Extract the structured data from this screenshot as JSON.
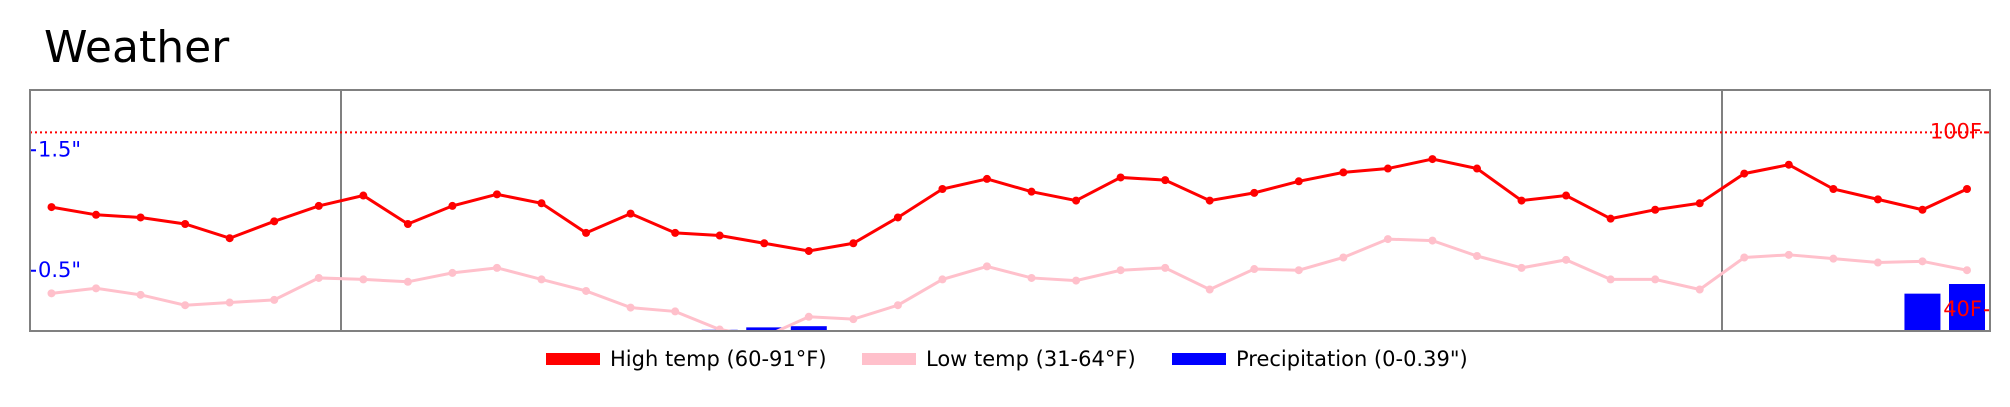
{
  "chart_data": {
    "type": "line",
    "title": "Weather",
    "categories": [
      null,
      null,
      null,
      null,
      null,
      null,
      null,
      null,
      null,
      null,
      null,
      null,
      null,
      null,
      null,
      null,
      null,
      null,
      null,
      null,
      null,
      null,
      null,
      null,
      null,
      null,
      null,
      null,
      null,
      null,
      null,
      null,
      null,
      null,
      null,
      null,
      null,
      null,
      null,
      null,
      null,
      null,
      null,
      null
    ],
    "series": [
      {
        "name": "High temp (60-91°F)",
        "color": "#ff0000",
        "axis": "y2",
        "values": [
          74.8,
          72.2,
          71.3,
          69.1,
          64.3,
          70,
          75.2,
          78.7,
          69.1,
          75.2,
          79.1,
          76.1,
          66.1,
          72.6,
          66.1,
          65.2,
          62.6,
          60,
          62.6,
          71.3,
          80.9,
          84.3,
          80,
          77,
          84.8,
          83.9,
          77,
          79.6,
          83.5,
          86.5,
          87.8,
          91,
          87.8,
          77,
          78.7,
          70.9,
          73.9,
          76.1,
          86.1,
          89.1,
          80.9,
          77.4,
          73.9,
          80.9
        ]
      },
      {
        "name": "Low temp (31-64°F)",
        "color": "#ffc0cb",
        "axis": "y2",
        "values": [
          45.7,
          47.4,
          45.2,
          41.7,
          42.6,
          43.5,
          50.9,
          50.4,
          49.6,
          52.6,
          54.3,
          50.4,
          46.5,
          40.9,
          39.6,
          33.5,
          31,
          37.8,
          37,
          41.7,
          50.4,
          54.8,
          50.9,
          50,
          53.5,
          54.3,
          47,
          53.9,
          53.5,
          57.8,
          64,
          63.5,
          58.3,
          54.3,
          57,
          50.4,
          50.4,
          47,
          57.8,
          58.7,
          57.4,
          56.1,
          56.5,
          53.5
        ]
      },
      {
        "name": "Precipitation (0-0.39\")",
        "color": "#0000ff",
        "type": "bar",
        "values": [
          0,
          0,
          0,
          0,
          0,
          0,
          0,
          0,
          0,
          0,
          0,
          0,
          0,
          0,
          0,
          0.01,
          0.03,
          0.04,
          0,
          0,
          0,
          0,
          0,
          0,
          0,
          0,
          0,
          0,
          0,
          0,
          0,
          0,
          0,
          0,
          0,
          0,
          0,
          0,
          0,
          0,
          0,
          0,
          0.31,
          0.39
        ]
      }
    ],
    "ylim": [
      0,
      2
    ],
    "yticks": [
      {
        "value": 0.5,
        "label": "0.5\""
      },
      {
        "value": 1.5,
        "label": "1.5\""
      }
    ],
    "y2lim": [
      33,
      114.3
    ],
    "y2ticks": [
      {
        "value": 40,
        "label": "40F"
      },
      {
        "value": 100,
        "label": "100F"
      }
    ],
    "y2_reference_line": {
      "value": 100,
      "color": "#ff0000"
    },
    "legend": "bottom"
  }
}
